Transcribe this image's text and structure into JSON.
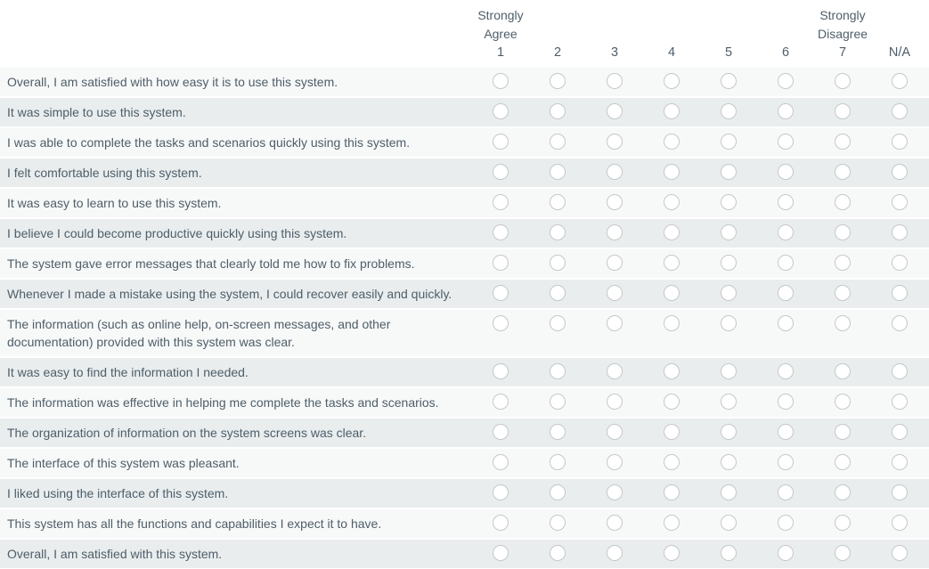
{
  "header": {
    "columns": [
      {
        "value": "1",
        "label": "Strongly Agree"
      },
      {
        "value": "2",
        "label": ""
      },
      {
        "value": "3",
        "label": ""
      },
      {
        "value": "4",
        "label": ""
      },
      {
        "value": "5",
        "label": ""
      },
      {
        "value": "6",
        "label": ""
      },
      {
        "value": "7",
        "label": "Strongly Disagree"
      },
      {
        "value": "N/A",
        "label": ""
      }
    ]
  },
  "questions": [
    "Overall, I am satisfied with how easy it is to use this system.",
    "It was simple to use this system.",
    "I was able to complete the tasks and scenarios quickly using this system.",
    "I felt comfortable using this system.",
    "It was easy to learn to use this system.",
    "I believe I could become productive quickly using this system.",
    "The system gave error messages that clearly told me how to fix problems.",
    "Whenever I made a mistake using the system, I could recover easily and quickly.",
    "The information (such as online help, on-screen messages, and other documentation) provided with this system was clear.",
    "It was easy to find the information I needed.",
    "The information was effective in helping me complete the tasks and scenarios.",
    "The organization of information on the system screens was clear.",
    "The interface of this system was pleasant.",
    "I liked using the interface of this system.",
    "This system has all the functions and capabilities I expect it to have.",
    "Overall, I am satisfied with this system."
  ],
  "selection_state": "none-selected",
  "colors": {
    "text": "#4e5e69",
    "row_light": "#f7f8f8",
    "row_alt": "#e9edee",
    "radio_border": "#c4c8ca",
    "radio_fill": "#ffffff"
  }
}
